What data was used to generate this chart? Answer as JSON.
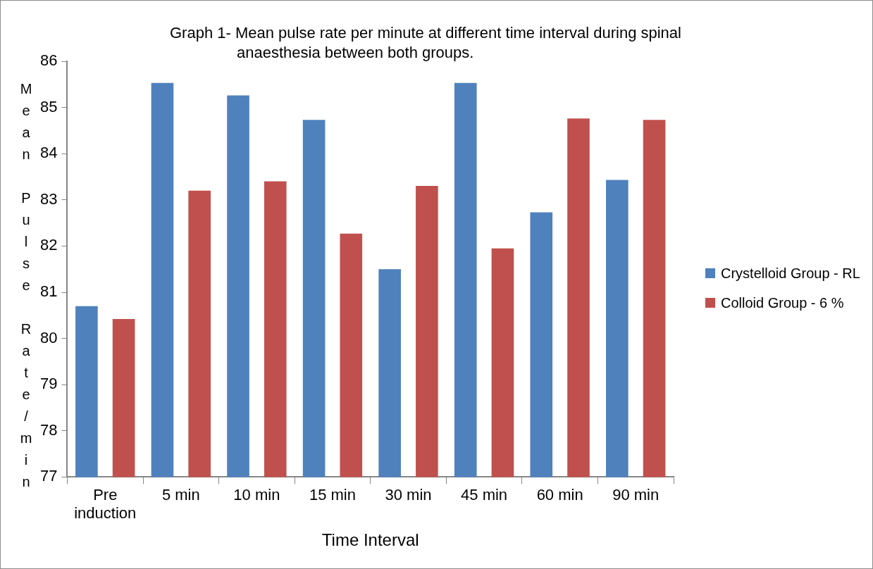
{
  "chart_data": {
    "type": "bar",
    "title": "Graph 1- Mean pulse rate per minute at different time interval during spinal anaesthesia between both groups.",
    "xlabel": "Time Interval",
    "ylabel": "Mean Pulse Rate/min",
    "categories": [
      "Pre induction",
      "5 min",
      "10 min",
      "15 min",
      "30 min",
      "45 min",
      "60 min",
      "90 min"
    ],
    "series": [
      {
        "name": "Crystelloid Group - RL",
        "color": "#4f81bd",
        "values": [
          80.7,
          85.53,
          85.26,
          84.73,
          81.5,
          85.53,
          82.73,
          83.43
        ]
      },
      {
        "name": "Colloid Group - 6 %",
        "color": "#c0504d",
        "values": [
          80.42,
          83.2,
          83.4,
          82.27,
          83.3,
          81.95,
          84.76,
          84.73
        ]
      }
    ],
    "ylim": [
      77,
      86
    ],
    "yticks": [
      77,
      78,
      79,
      80,
      81,
      82,
      83,
      84,
      85,
      86
    ],
    "grid": false,
    "legend": "right"
  }
}
